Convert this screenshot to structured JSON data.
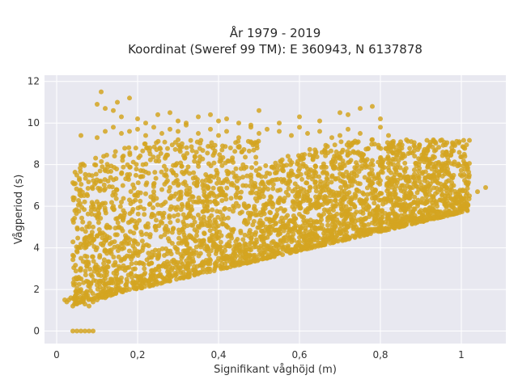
{
  "chart_data": {
    "type": "scatter",
    "title_line1": "År 1979 - 2019",
    "title_line2": "Koordinat (Sweref 99 TM): E 360943, N 6137878",
    "xlabel": "Signifikant våghöjd (m)",
    "ylabel": "Vågperiod (s)",
    "xlim": [
      -0.03,
      1.11
    ],
    "ylim": [
      -0.6,
      12.3
    ],
    "x_ticks": [
      0,
      0.2,
      0.4,
      0.6,
      0.8,
      1
    ],
    "x_tick_labels": [
      "0",
      "0,2",
      "0,4",
      "0,6",
      "0,8",
      "1"
    ],
    "y_ticks": [
      0,
      2,
      4,
      6,
      8,
      10,
      12
    ],
    "y_tick_labels": [
      "0",
      "2",
      "4",
      "6",
      "8",
      "10",
      "12"
    ],
    "grid": true,
    "point_color": "#D4A521",
    "plot_bg": "#E8E8F0",
    "series": [
      {
        "x": [
          0.02,
          0.025,
          0.03,
          0.035,
          0.04,
          0.045,
          0.05,
          0.055,
          0.06,
          0.07,
          0.08,
          0.09,
          0.1,
          0.12,
          0.14,
          0.16,
          0.18,
          0.2,
          0.22,
          0.24,
          0.26,
          0.28,
          0.3,
          0.32,
          0.34,
          0.36,
          0.38,
          0.4,
          0.42,
          0.44,
          0.46,
          0.48,
          0.5,
          0.52,
          0.54,
          0.56,
          0.58,
          0.6,
          0.62,
          0.64,
          0.66,
          0.68,
          0.7,
          0.72,
          0.74,
          0.76,
          0.78,
          0.8,
          0.82,
          0.84,
          0.86,
          0.88,
          0.9,
          0.92,
          0.94,
          0.96,
          0.98,
          1.0,
          1.02,
          1.04,
          1.06,
          0.04,
          0.05,
          0.06,
          0.07,
          0.08,
          0.09,
          0.06,
          0.07,
          0.08,
          0.09,
          0.1,
          0.12,
          0.14,
          0.16,
          0.18,
          0.2,
          0.22,
          0.24,
          0.26,
          0.28,
          0.3,
          0.32,
          0.34,
          0.36,
          0.38,
          0.4,
          0.42,
          0.44,
          0.46,
          0.48,
          0.5,
          0.52,
          0.54,
          0.56,
          0.58,
          0.6,
          0.62,
          0.64,
          0.66,
          0.68,
          0.7,
          0.72,
          0.74,
          0.76,
          0.78,
          0.8,
          0.82,
          0.84,
          0.86,
          0.06,
          0.1,
          0.12,
          0.14,
          0.16,
          0.18,
          0.2,
          0.22,
          0.24,
          0.26,
          0.28,
          0.3,
          0.32,
          0.35,
          0.38,
          0.4,
          0.42,
          0.45,
          0.48,
          0.5,
          0.52,
          0.55,
          0.58,
          0.6,
          0.62,
          0.65,
          0.68,
          0.7,
          0.72,
          0.75,
          0.78,
          0.8,
          0.82,
          0.85,
          0.06,
          0.08,
          0.1,
          0.11,
          0.12,
          0.14,
          0.15,
          0.16,
          0.18,
          0.2,
          0.22,
          0.25,
          0.28,
          0.3,
          0.32,
          0.35,
          0.38,
          0.4,
          0.42,
          0.45,
          0.48,
          0.5,
          0.55,
          0.6,
          0.65,
          0.7,
          0.72,
          0.75,
          0.78,
          0.8
        ],
        "y": [
          1.5,
          1.4,
          1.5,
          1.6,
          1.2,
          1.5,
          1.3,
          1.5,
          1.4,
          1.3,
          1.2,
          1.4,
          1.5,
          1.6,
          1.8,
          1.9,
          2.0,
          2.2,
          2.3,
          2.5,
          2.6,
          2.7,
          2.9,
          3.0,
          3.1,
          3.2,
          3.4,
          3.5,
          3.6,
          3.7,
          3.8,
          3.9,
          4.0,
          4.1,
          4.2,
          4.3,
          4.4,
          4.5,
          4.6,
          4.6,
          4.7,
          4.8,
          4.9,
          5.0,
          5.0,
          5.1,
          5.2,
          5.3,
          5.4,
          5.5,
          5.6,
          5.7,
          5.8,
          5.9,
          6.0,
          6.1,
          6.2,
          6.4,
          6.5,
          6.7,
          6.9,
          0.0,
          0.0,
          0.0,
          0.0,
          0.0,
          0.0,
          3.5,
          4.0,
          4.5,
          5.0,
          5.5,
          5.8,
          6.0,
          6.2,
          6.3,
          6.5,
          6.6,
          6.7,
          6.8,
          6.9,
          7.0,
          7.0,
          7.1,
          7.2,
          7.2,
          7.3,
          7.3,
          7.4,
          7.4,
          7.5,
          7.5,
          7.6,
          7.6,
          7.7,
          7.7,
          7.8,
          7.8,
          7.9,
          7.9,
          8.0,
          8.0,
          8.1,
          8.1,
          8.2,
          8.2,
          8.3,
          8.3,
          8.4,
          8.4,
          9.4,
          9.3,
          9.6,
          9.8,
          9.5,
          9.6,
          9.7,
          9.4,
          9.8,
          9.5,
          9.7,
          9.6,
          9.9,
          9.5,
          9.7,
          9.4,
          9.6,
          9.3,
          9.8,
          9.5,
          9.7,
          9.6,
          9.4,
          9.8,
          9.5,
          9.6,
          9.3,
          9.4,
          9.7,
          9.5,
          9.2,
          9.8,
          9.4,
          9.1,
          8.0,
          7.5,
          10.9,
          11.5,
          10.7,
          10.6,
          11.0,
          10.3,
          11.2,
          10.2,
          10.0,
          10.4,
          10.5,
          10.1,
          10.0,
          10.3,
          10.4,
          10.1,
          10.2,
          10.0,
          9.9,
          10.6,
          10.0,
          10.3,
          10.1,
          10.5,
          10.4,
          10.7,
          10.8,
          10.2
        ]
      }
    ]
  }
}
